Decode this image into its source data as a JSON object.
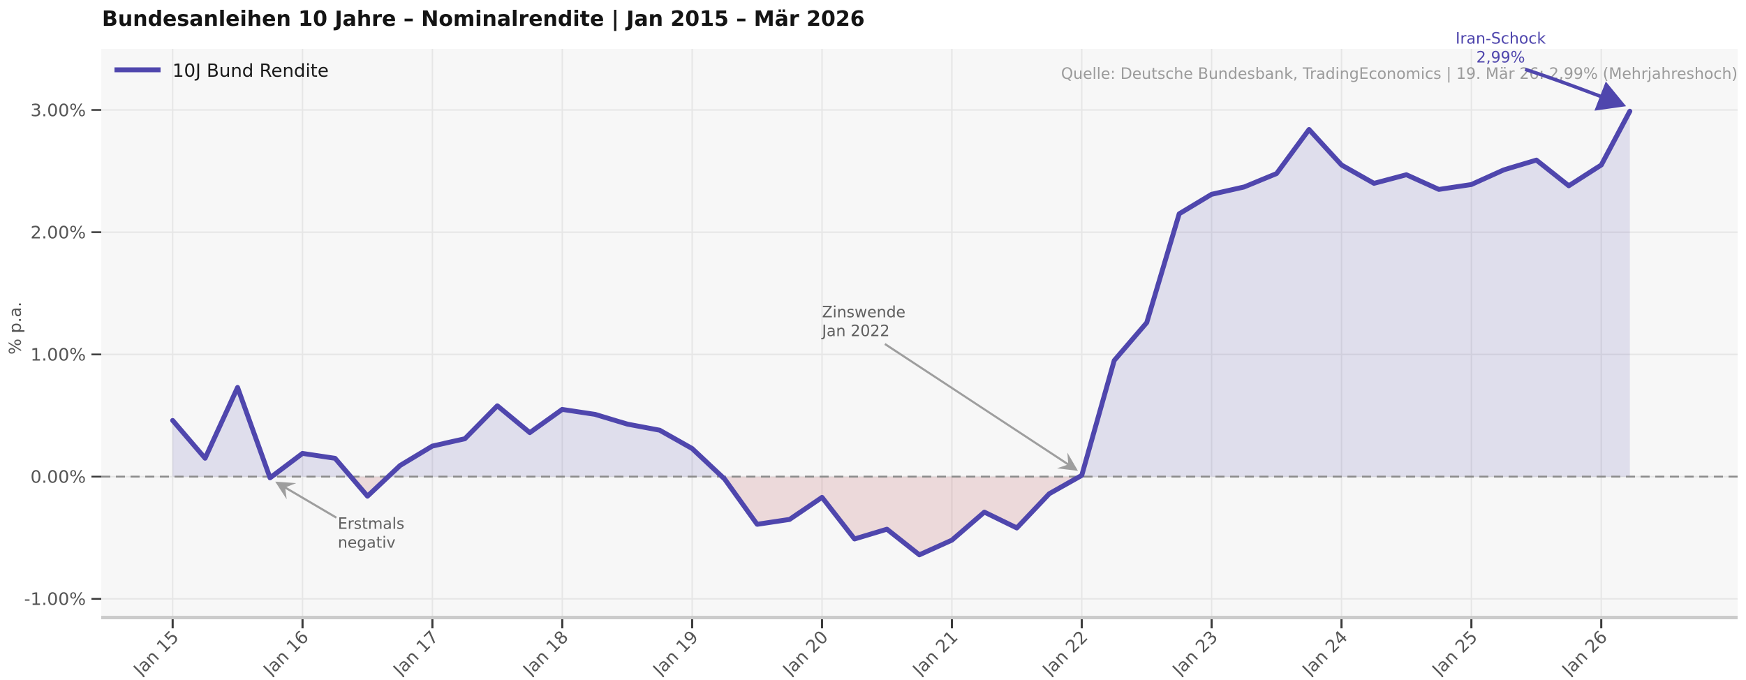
{
  "title": "Bundesanleihen 10 Jahre – Nominalrendite  |  Jan 2015 – Mär 2026",
  "legend": {
    "label": "10J Bund Rendite"
  },
  "source_note": "Quelle: Deutsche Bundesbank, TradingEconomics | 19. Mär 26: 2,99% (Mehrjahreshoch)",
  "ylabel": "% p.a.",
  "colors": {
    "line": "#4F46AD",
    "fill_positive": "rgba(79,70,173,0.14)",
    "fill_negative": "rgba(187,85,90,0.18)",
    "plot_background": "#F7F7F7",
    "figure_background": "#FFFFFF",
    "grid": "#E6E6E6",
    "zero_line": "#8C8C8C",
    "spine": "#CBCBCB",
    "tick_mark": "#3A3A3A",
    "tick_label": "#555555",
    "title_text": "#141414",
    "source_text": "#9B9B9B",
    "annotation_text": "#5F5F5F",
    "annotation_arrow": "#9E9E9E",
    "iran_annotation": "#4F46AD"
  },
  "chart_data": {
    "type": "area",
    "title": "Bundesanleihen 10 Jahre – Nominalrendite | Jan 2015 – Mär 2026",
    "xlabel": "",
    "ylabel": "% p.a.",
    "grid": true,
    "zero_line_dashed": true,
    "legend_position": "top-left",
    "xlim": [
      2014.45,
      2027.05
    ],
    "ylim": [
      -1.15,
      3.5
    ],
    "x_ticks": [
      {
        "t": 2015,
        "label": "Jan 15"
      },
      {
        "t": 2016,
        "label": "Jan 16"
      },
      {
        "t": 2017,
        "label": "Jan 17"
      },
      {
        "t": 2018,
        "label": "Jan 18"
      },
      {
        "t": 2019,
        "label": "Jan 19"
      },
      {
        "t": 2020,
        "label": "Jan 20"
      },
      {
        "t": 2021,
        "label": "Jan 21"
      },
      {
        "t": 2022,
        "label": "Jan 22"
      },
      {
        "t": 2023,
        "label": "Jan 23"
      },
      {
        "t": 2024,
        "label": "Jan 24"
      },
      {
        "t": 2025,
        "label": "Jan 25"
      },
      {
        "t": 2026,
        "label": "Jan 26"
      }
    ],
    "y_ticks": [
      {
        "v": -1,
        "label": "-1.00%"
      },
      {
        "v": 0,
        "label": "0.00%"
      },
      {
        "v": 1,
        "label": "1.00%"
      },
      {
        "v": 2,
        "label": "2.00%"
      },
      {
        "v": 3,
        "label": "3.00%"
      }
    ],
    "series": [
      {
        "name": "10J Bund Rendite",
        "x": [
          2015.0,
          2015.25,
          2015.5,
          2015.75,
          2016.0,
          2016.25,
          2016.5,
          2016.75,
          2017.0,
          2017.25,
          2017.5,
          2017.75,
          2018.0,
          2018.25,
          2018.5,
          2018.75,
          2019.0,
          2019.25,
          2019.5,
          2019.75,
          2020.0,
          2020.25,
          2020.5,
          2020.75,
          2021.0,
          2021.25,
          2021.5,
          2021.75,
          2022.0,
          2022.25,
          2022.5,
          2022.75,
          2023.0,
          2023.25,
          2023.5,
          2023.75,
          2024.0,
          2024.25,
          2024.5,
          2024.75,
          2025.0,
          2025.25,
          2025.5,
          2025.75,
          2026.0,
          2026.22
        ],
        "values": [
          0.46,
          0.15,
          0.73,
          -0.01,
          0.19,
          0.15,
          -0.16,
          0.09,
          0.25,
          0.31,
          0.58,
          0.36,
          0.55,
          0.51,
          0.43,
          0.38,
          0.23,
          -0.02,
          -0.39,
          -0.35,
          -0.17,
          -0.51,
          -0.43,
          -0.64,
          -0.52,
          -0.29,
          -0.42,
          -0.14,
          0.01,
          0.95,
          1.26,
          2.15,
          2.31,
          2.37,
          2.48,
          2.84,
          2.55,
          2.4,
          2.47,
          2.35,
          2.39,
          2.51,
          2.59,
          2.38,
          2.55,
          2.99
        ]
      }
    ],
    "annotations": [
      {
        "id": "iran",
        "line1": "Iran-Schock",
        "line2": "2,99%",
        "anchor_t": 2026.22,
        "anchor_v": 2.99,
        "style": "purple"
      },
      {
        "id": "zinswende",
        "line1": "Zinswende",
        "line2": "Jan 2022",
        "anchor_t": 2022.0,
        "anchor_v": 0.0,
        "style": "gray"
      },
      {
        "id": "erstmals",
        "line1": "Erstmals",
        "line2": "negativ",
        "anchor_t": 2015.75,
        "anchor_v": -0.01,
        "style": "gray"
      }
    ]
  }
}
